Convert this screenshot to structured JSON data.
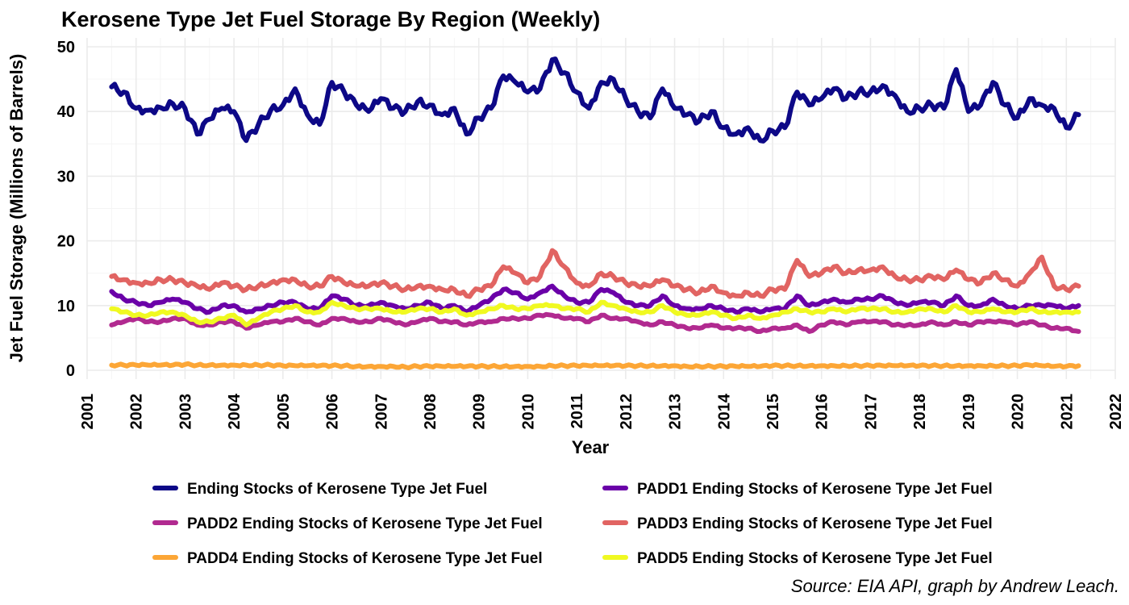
{
  "chart_data": {
    "type": "line",
    "title": "Kerosene Type Jet Fuel Storage By Region (Weekly)",
    "xlabel": "Year",
    "ylabel": "Jet Fuel Storage (Millions of Barrels)",
    "caption": "Source: EIA API, graph by Andrew Leach.",
    "xlim": [
      2001,
      2022
    ],
    "ylim": [
      0,
      50
    ],
    "x_ticks": [
      "2001",
      "2002",
      "2003",
      "2004",
      "2005",
      "2006",
      "2007",
      "2008",
      "2009",
      "2010",
      "2011",
      "2012",
      "2013",
      "2014",
      "2015",
      "2016",
      "2017",
      "2018",
      "2019",
      "2020",
      "2021",
      "2022"
    ],
    "y_ticks": [
      "0",
      "10",
      "20",
      "30",
      "40",
      "50"
    ],
    "grid": true,
    "legend_position": "bottom",
    "x": [
      2001.5,
      2001.75,
      2002.0,
      2002.25,
      2002.5,
      2002.75,
      2003.0,
      2003.25,
      2003.5,
      2003.75,
      2004.0,
      2004.25,
      2004.5,
      2004.75,
      2005.0,
      2005.25,
      2005.5,
      2005.75,
      2006.0,
      2006.25,
      2006.5,
      2006.75,
      2007.0,
      2007.25,
      2007.5,
      2007.75,
      2008.0,
      2008.25,
      2008.5,
      2008.75,
      2009.0,
      2009.25,
      2009.5,
      2009.75,
      2010.0,
      2010.25,
      2010.5,
      2010.75,
      2011.0,
      2011.25,
      2011.5,
      2011.75,
      2012.0,
      2012.25,
      2012.5,
      2012.75,
      2013.0,
      2013.25,
      2013.5,
      2013.75,
      2014.0,
      2014.25,
      2014.5,
      2014.75,
      2015.0,
      2015.25,
      2015.5,
      2015.75,
      2016.0,
      2016.25,
      2016.5,
      2016.75,
      2017.0,
      2017.25,
      2017.5,
      2017.75,
      2018.0,
      2018.25,
      2018.5,
      2018.75,
      2019.0,
      2019.25,
      2019.5,
      2019.75,
      2020.0,
      2020.25,
      2020.5,
      2020.75,
      2021.0,
      2021.25
    ],
    "series": [
      {
        "name": "Ending Stocks of Kerosene Type Jet Fuel",
        "color": "#0D0887",
        "values": [
          43.8,
          43.0,
          40.5,
          40.2,
          40.6,
          41.2,
          40.5,
          36.5,
          38.8,
          40.5,
          40.0,
          35.5,
          38.0,
          40.2,
          41.0,
          43.5,
          39.5,
          38.0,
          44.5,
          43.0,
          41.0,
          40.0,
          42.0,
          40.5,
          40.0,
          41.5,
          41.0,
          39.5,
          40.5,
          36.5,
          39.0,
          40.5,
          45.5,
          44.5,
          43.0,
          43.5,
          48.0,
          46.0,
          43.0,
          40.5,
          44.5,
          45.0,
          42.0,
          40.0,
          39.0,
          43.5,
          40.5,
          39.5,
          38.5,
          40.0,
          37.5,
          36.5,
          37.5,
          35.5,
          37.0,
          37.5,
          43.0,
          41.0,
          42.0,
          43.5,
          42.0,
          43.0,
          43.0,
          44.0,
          42.5,
          40.0,
          40.5,
          41.0,
          40.5,
          46.5,
          40.0,
          41.0,
          44.5,
          41.0,
          39.0,
          42.0,
          41.0,
          40.5,
          37.5,
          39.5
        ]
      },
      {
        "name": "PADD1 Ending Stocks of Kerosene Type Jet Fuel",
        "color": "#6A00A8",
        "values": [
          12.2,
          11.0,
          10.5,
          10.0,
          10.5,
          11.0,
          10.5,
          9.5,
          9.0,
          10.0,
          10.0,
          9.0,
          9.5,
          10.0,
          10.5,
          10.5,
          9.5,
          9.5,
          11.5,
          11.0,
          10.0,
          10.0,
          10.5,
          10.0,
          9.5,
          10.0,
          10.5,
          9.5,
          10.0,
          9.0,
          10.0,
          11.0,
          12.5,
          12.0,
          11.0,
          12.0,
          13.0,
          11.5,
          10.5,
          10.5,
          12.5,
          12.0,
          10.5,
          10.0,
          10.0,
          11.5,
          10.0,
          9.5,
          9.5,
          10.0,
          9.5,
          9.0,
          9.5,
          9.0,
          9.5,
          9.5,
          11.5,
          10.0,
          10.5,
          11.0,
          10.5,
          11.0,
          11.0,
          11.5,
          10.5,
          10.0,
          10.5,
          10.5,
          10.0,
          11.5,
          10.0,
          10.0,
          11.0,
          10.0,
          9.5,
          10.0,
          10.0,
          10.0,
          9.5,
          10.0
        ]
      },
      {
        "name": "PADD2 Ending Stocks of Kerosene Type Jet Fuel",
        "color": "#B12A90",
        "values": [
          7.0,
          7.5,
          8.0,
          7.5,
          7.5,
          8.0,
          8.0,
          7.0,
          7.0,
          7.5,
          7.5,
          6.5,
          7.0,
          7.5,
          7.5,
          8.0,
          7.5,
          7.0,
          8.0,
          8.0,
          7.5,
          7.5,
          8.0,
          7.5,
          7.0,
          7.5,
          8.0,
          7.5,
          7.5,
          7.0,
          7.5,
          7.5,
          8.0,
          8.0,
          8.0,
          8.5,
          8.5,
          8.0,
          8.0,
          7.5,
          8.5,
          8.0,
          8.0,
          7.5,
          7.0,
          7.5,
          7.0,
          6.5,
          6.5,
          7.0,
          6.5,
          6.5,
          6.5,
          6.0,
          6.5,
          6.5,
          7.0,
          6.0,
          7.0,
          7.5,
          7.0,
          7.5,
          7.5,
          7.5,
          7.0,
          7.0,
          7.0,
          7.5,
          7.0,
          7.5,
          7.0,
          7.5,
          7.5,
          7.5,
          7.0,
          7.5,
          7.0,
          6.5,
          6.5,
          6.0
        ]
      },
      {
        "name": "PADD3 Ending Stocks of Kerosene Type Jet Fuel",
        "color": "#E16462",
        "values": [
          14.5,
          14.0,
          13.5,
          13.5,
          14.0,
          14.0,
          13.5,
          13.0,
          12.5,
          13.5,
          13.0,
          12.5,
          13.0,
          13.5,
          14.0,
          14.0,
          13.0,
          13.0,
          14.5,
          13.5,
          13.0,
          13.0,
          13.5,
          13.0,
          12.5,
          13.0,
          13.0,
          12.5,
          12.5,
          11.5,
          12.5,
          13.0,
          16.0,
          15.0,
          13.5,
          14.5,
          18.5,
          16.0,
          13.5,
          13.0,
          15.0,
          14.5,
          13.5,
          13.0,
          13.0,
          14.0,
          13.0,
          12.5,
          12.0,
          13.0,
          12.0,
          11.5,
          12.0,
          11.5,
          12.5,
          12.5,
          17.0,
          14.5,
          15.0,
          16.0,
          15.0,
          15.5,
          15.5,
          16.0,
          14.5,
          14.0,
          14.0,
          14.5,
          14.0,
          15.5,
          14.0,
          13.5,
          15.0,
          14.0,
          13.0,
          15.0,
          17.5,
          13.0,
          12.5,
          13.0
        ]
      },
      {
        "name": "PADD4 Ending Stocks of Kerosene Type Jet Fuel",
        "color": "#FCA636",
        "values": [
          0.8,
          0.8,
          0.8,
          0.8,
          0.8,
          0.8,
          0.9,
          0.8,
          0.8,
          0.8,
          0.8,
          0.8,
          0.8,
          0.8,
          0.7,
          0.7,
          0.7,
          0.7,
          0.7,
          0.7,
          0.6,
          0.6,
          0.6,
          0.6,
          0.5,
          0.6,
          0.6,
          0.6,
          0.6,
          0.6,
          0.6,
          0.6,
          0.6,
          0.6,
          0.6,
          0.6,
          0.7,
          0.7,
          0.7,
          0.7,
          0.7,
          0.7,
          0.7,
          0.7,
          0.7,
          0.7,
          0.7,
          0.6,
          0.6,
          0.6,
          0.6,
          0.6,
          0.6,
          0.6,
          0.7,
          0.7,
          0.7,
          0.7,
          0.7,
          0.7,
          0.7,
          0.7,
          0.7,
          0.7,
          0.7,
          0.7,
          0.7,
          0.7,
          0.7,
          0.7,
          0.7,
          0.7,
          0.7,
          0.7,
          0.7,
          0.8,
          0.7,
          0.6,
          0.6,
          0.7
        ]
      },
      {
        "name": "PADD5 Ending Stocks of Kerosene Type Jet Fuel",
        "color": "#F0F921",
        "values": [
          9.5,
          9.0,
          8.5,
          8.5,
          9.0,
          9.0,
          8.5,
          7.5,
          7.5,
          8.0,
          8.5,
          7.0,
          8.0,
          9.0,
          9.5,
          10.0,
          9.0,
          9.0,
          10.5,
          10.0,
          9.5,
          9.5,
          9.5,
          9.0,
          9.0,
          9.5,
          9.5,
          9.0,
          9.5,
          8.5,
          9.0,
          9.5,
          10.0,
          9.5,
          9.5,
          10.0,
          10.0,
          9.5,
          9.5,
          9.0,
          10.5,
          10.0,
          9.5,
          9.0,
          9.0,
          10.0,
          9.0,
          8.5,
          8.5,
          9.0,
          8.5,
          8.0,
          8.5,
          8.0,
          8.5,
          9.0,
          9.5,
          9.0,
          9.0,
          9.5,
          9.0,
          9.5,
          9.5,
          9.5,
          9.0,
          9.0,
          9.5,
          9.5,
          9.0,
          10.0,
          9.0,
          9.0,
          9.5,
          9.0,
          9.0,
          9.5,
          9.0,
          9.0,
          9.0,
          9.0
        ]
      }
    ]
  }
}
